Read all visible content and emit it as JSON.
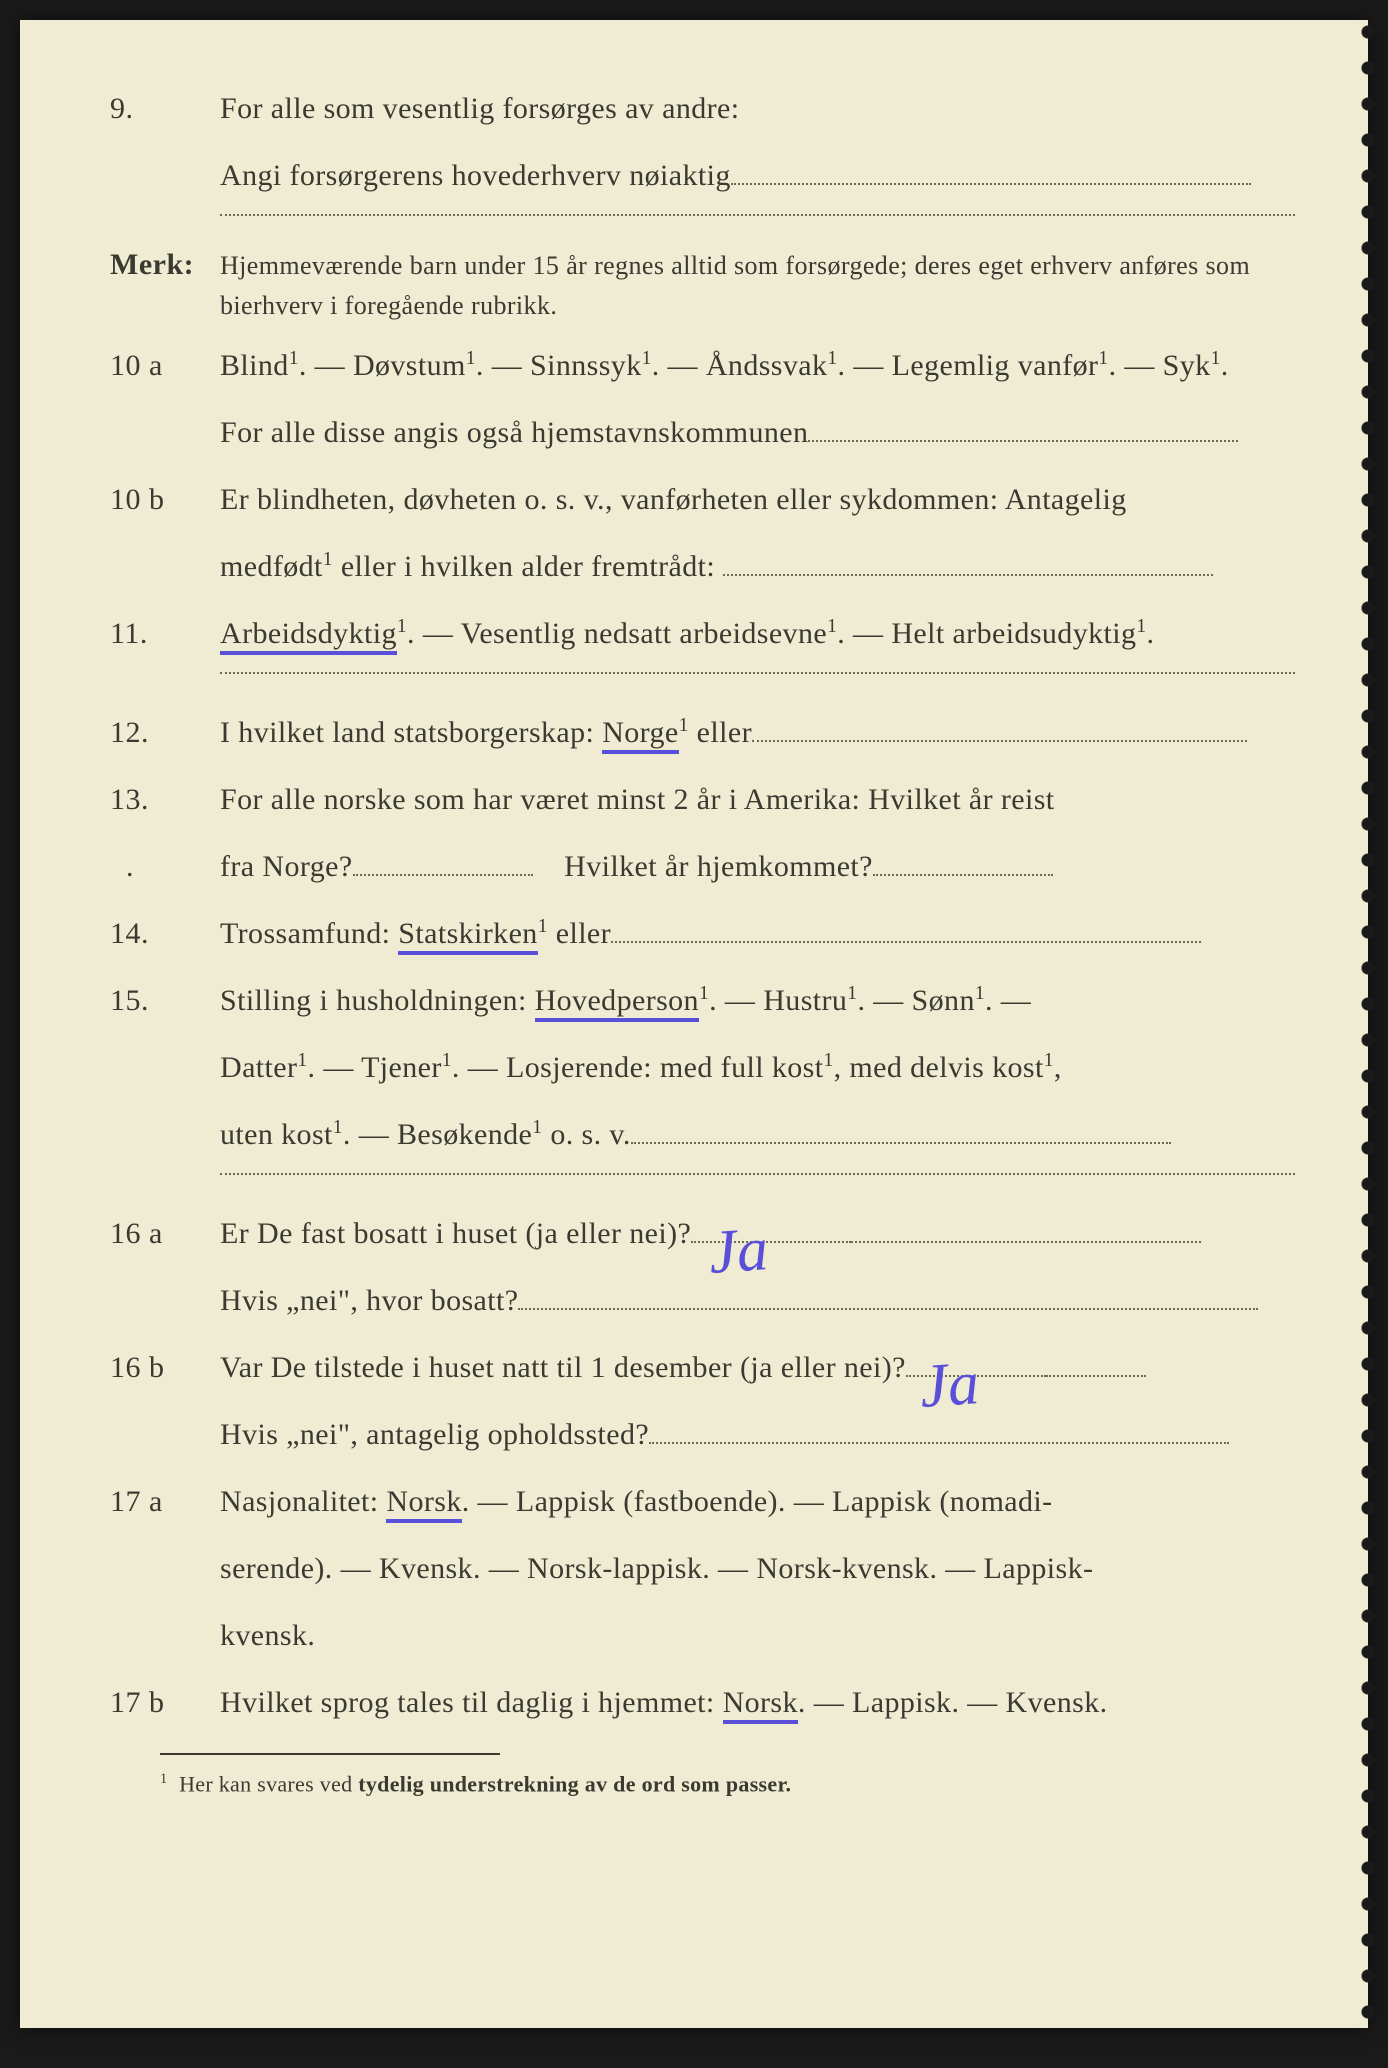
{
  "colors": {
    "paper": "#f0ecd4",
    "ink": "#3a3a30",
    "underline": "#5a4fd8",
    "handwriting": "#5a4fd8",
    "dotted": "#6a6a55"
  },
  "typography": {
    "body_size_pt": 30,
    "note_size_pt": 26,
    "footnote_size_pt": 22,
    "hand_size_pt": 62,
    "family": "Georgia/Times"
  },
  "q9": {
    "num": "9.",
    "line1": "For alle som vesentlig forsørges av andre:",
    "line2_pre": "Angi forsørgerens hovederhverv nøiaktig"
  },
  "merk": {
    "label": "Merk:",
    "text": "Hjemmeværende barn under 15 år regnes alltid som forsørgede; deres eget erhverv anføres som bierhverv i foregående rubrikk."
  },
  "q10a": {
    "num": "10 a",
    "opts": "Blind¹.   —   Døvstum¹.   —   Sinnssyk¹.   —   Åndssvak¹.   —   Legemlig vanfør¹.   —   Syk¹.",
    "line2": "For alle disse angis også hjemstavnskommunen"
  },
  "q10b": {
    "num": "10 b",
    "line1": "Er blindheten, døvheten o. s. v., vanførheten eller sykdommen: Antagelig",
    "line2_pre": "medfødt¹ eller i hvilken alder fremtrådt:"
  },
  "q11": {
    "num": "11.",
    "opt1": "Arbeidsdyktig",
    "opt_rest": "¹. — Vesentlig nedsatt arbeidsevne¹. — Helt arbeidsudyktig¹."
  },
  "q12": {
    "num": "12.",
    "pre": "I hvilket land statsborgerskap:  ",
    "und": "Norge",
    "post": "¹ eller"
  },
  "q13": {
    "num": "13.",
    "line1": "For alle norske som har været minst 2 år i Amerika:  Hvilket år reist",
    "line2a": "fra Norge?",
    "line2b": "Hvilket år hjemkommet?"
  },
  "q14": {
    "num": "14.",
    "pre": "Trossamfund:  ",
    "und": "Statskirken",
    "post": "¹ eller"
  },
  "q15": {
    "num": "15.",
    "pre": "Stilling i husholdningen:  ",
    "und": "Hovedperson",
    "post1": "¹.  —  Hustru¹.  —  Sønn¹. —",
    "line2": "Datter¹.  —  Tjener¹.  —  Losjerende:  med full kost¹, med delvis kost¹,",
    "line3": "uten kost¹.  —  Besøkende¹ o. s. v."
  },
  "q16a": {
    "num": "16 a",
    "line1": "Er De fast bosatt i huset (ja eller nei)?",
    "ans1": "Ja",
    "line2": "Hvis „nei\", hvor bosatt?"
  },
  "q16b": {
    "num": "16 b",
    "line1": "Var De tilstede i huset natt til 1 desember (ja eller nei)?",
    "ans1": "Ja",
    "line2": "Hvis „nei\", antagelig opholdssted?"
  },
  "q17a": {
    "num": "17 a",
    "pre": "Nasjonalitet:  ",
    "und": "Norsk",
    "post": ".  —  Lappisk (fastboende).  —  Lappisk (nomadi-",
    "line2": "serende).  —  Kvensk.  —  Norsk-lappisk.  —  Norsk-kvensk.  —  Lappisk-",
    "line3": "kvensk."
  },
  "q17b": {
    "num": "17 b",
    "pre": "Hvilket sprog tales til daglig i hjemmet:  ",
    "und": "Norsk",
    "post": ".  —  Lappisk.  — Kvensk."
  },
  "footnote": {
    "sup": "1",
    "text": "Her kan svares ved ",
    "bold": "tydelig understrekning av de ord som passer."
  }
}
